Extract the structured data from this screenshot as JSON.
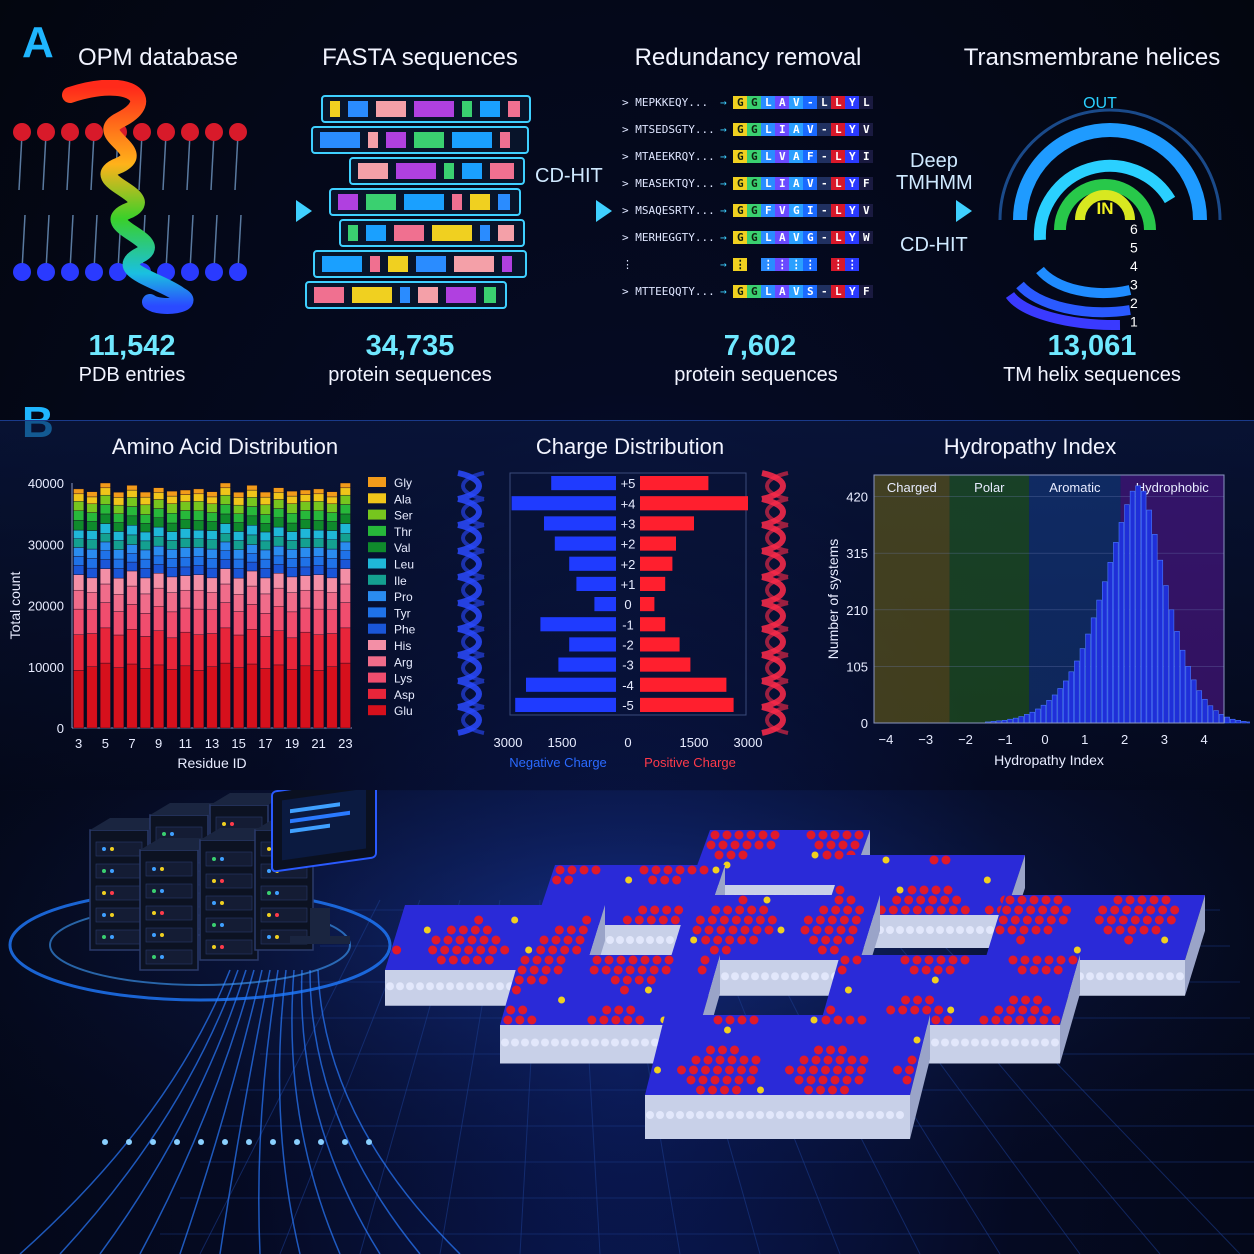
{
  "panels": {
    "a": "A",
    "b": "B"
  },
  "pipeline": {
    "steps": [
      {
        "title": "OPM database",
        "count": "11,542",
        "sub": "PDB entries"
      },
      {
        "title": "FASTA sequences",
        "count": "34,735",
        "sub": "protein sequences"
      },
      {
        "title": "Redundancy removal",
        "count": "7,602",
        "sub": "protein sequences"
      },
      {
        "title": "Transmembrane helices",
        "count": "13,061",
        "sub": "TM helix sequences"
      }
    ],
    "arrow_labels": {
      "cdhit1": "CD-HIT",
      "deep": "Deep",
      "tmhmm": "TMHMM",
      "cdhit2": "CD-HIT"
    },
    "alignment": [
      {
        "id": "> MEPKKEQY...",
        "res": [
          "G",
          "G",
          "L",
          "A",
          "V",
          "-",
          "L",
          "L",
          "Y",
          "L"
        ]
      },
      {
        "id": "> MTSEDSGTY...",
        "res": [
          "G",
          "G",
          "L",
          "I",
          "A",
          "V",
          "-",
          "L",
          "Y",
          "V"
        ]
      },
      {
        "id": "> MTAEEKRQY...",
        "res": [
          "G",
          "G",
          "L",
          "V",
          "A",
          "F",
          "-",
          "L",
          "Y",
          "I"
        ]
      },
      {
        "id": "> MEASEKTQY...",
        "res": [
          "G",
          "G",
          "L",
          "I",
          "A",
          "V",
          "-",
          "L",
          "Y",
          "F"
        ]
      },
      {
        "id": "> MSAQESRTY...",
        "res": [
          "G",
          "G",
          "F",
          "V",
          "G",
          "I",
          "-",
          "L",
          "Y",
          "V"
        ]
      },
      {
        "id": "> MERHEGGTY...",
        "res": [
          "G",
          "G",
          "L",
          "A",
          "V",
          "G",
          "-",
          "L",
          "Y",
          "W"
        ]
      },
      {
        "id": "⋮",
        "res": [
          "⋮",
          "",
          "⋮",
          "⋮",
          "⋮",
          "⋮",
          "",
          "⋮",
          "⋮",
          ""
        ]
      },
      {
        "id": "> MTTEEQQTY...",
        "res": [
          "G",
          "G",
          "L",
          "A",
          "V",
          "S",
          "-",
          "L",
          "Y",
          "F"
        ]
      }
    ],
    "tm_diagram": {
      "out_label": "OUT",
      "in_label": "IN",
      "levels": [
        "6",
        "5",
        "4",
        "3",
        "2",
        "1"
      ]
    }
  },
  "colors": {
    "accent": "#1fb6ff",
    "count": "#6fe8ff",
    "negative": "#1f3bff",
    "positive": "#ff1f2e"
  },
  "chart_data": [
    {
      "type": "bar",
      "stacked": true,
      "title": "Amino Acid Distribution",
      "xlabel": "Residue ID",
      "ylabel": "Total count",
      "ylim": [
        0,
        40000
      ],
      "yticks": [
        0,
        10000,
        20000,
        30000,
        40000
      ],
      "categories": [
        3,
        4,
        5,
        6,
        7,
        8,
        9,
        10,
        11,
        12,
        13,
        14,
        15,
        16,
        17,
        18,
        19,
        20,
        21,
        22,
        23
      ],
      "xtick_labels": [
        "3",
        "5",
        "7",
        "9",
        "11",
        "13",
        "15",
        "17",
        "19",
        "21",
        "23"
      ],
      "legend_position": "right",
      "series": [
        {
          "name": "Glu",
          "color": "#d6101c",
          "value": 10000
        },
        {
          "name": "Asp",
          "color": "#e8253a",
          "value": 5500
        },
        {
          "name": "Lys",
          "color": "#f04d6e",
          "value": 4000
        },
        {
          "name": "Arg",
          "color": "#f06c8a",
          "value": 3000
        },
        {
          "name": "His",
          "color": "#f38fa6",
          "value": 2500
        },
        {
          "name": "Phe",
          "color": "#1a56d8",
          "value": 1500
        },
        {
          "name": "Tyr",
          "color": "#1f72e8",
          "value": 1500
        },
        {
          "name": "Pro",
          "color": "#2a8cf0",
          "value": 1500
        },
        {
          "name": "Ile",
          "color": "#14a090",
          "value": 1500
        },
        {
          "name": "Leu",
          "color": "#1fb7d8",
          "value": 1500
        },
        {
          "name": "Val",
          "color": "#0f8a2c",
          "value": 1500
        },
        {
          "name": "Thr",
          "color": "#27b83a",
          "value": 1500
        },
        {
          "name": "Ser",
          "color": "#76c61e",
          "value": 1500
        },
        {
          "name": "Ala",
          "color": "#f0c51a",
          "value": 1200
        },
        {
          "name": "Gly",
          "color": "#f29b1a",
          "value": 800
        }
      ]
    },
    {
      "type": "bar",
      "orientation": "horizontal",
      "title": "Charge Distribution",
      "xlim": [
        -3000,
        3000
      ],
      "xtick_labels": [
        "3000",
        "1500",
        "0",
        "1500",
        "3000"
      ],
      "charge_labels": [
        "+5",
        "+4",
        "+3",
        "+2",
        "+2",
        "+1",
        "0",
        "-1",
        "-2",
        "-3",
        "-4",
        "-5"
      ],
      "series": [
        {
          "name": "Negative Charge",
          "color": "#1f3bff",
          "values": [
            1800,
            2900,
            2000,
            1700,
            1300,
            1100,
            600,
            2100,
            1300,
            1600,
            2500,
            2800
          ]
        },
        {
          "name": "Positive Charge",
          "color": "#ff1f2e",
          "values": [
            1900,
            3000,
            1500,
            1000,
            900,
            700,
            400,
            700,
            1100,
            1400,
            2400,
            2600
          ]
        }
      ]
    },
    {
      "type": "bar",
      "subtype": "histogram",
      "title": "Hydropathy Index",
      "xlabel": "Hydropathy Index",
      "ylabel": "Number of systems",
      "xlim": [
        -4,
        4.5
      ],
      "ylim": [
        0,
        460
      ],
      "xticks": [
        -4,
        -3,
        -2,
        -1,
        0,
        1,
        2,
        3,
        4
      ],
      "yticks": [
        0,
        105,
        210,
        315,
        420
      ],
      "regions": [
        {
          "label": "Charged",
          "from": -4.5,
          "to": -2.4,
          "color": "#8a7a10"
        },
        {
          "label": "Polar",
          "from": -2.4,
          "to": -0.4,
          "color": "#2f7a1a"
        },
        {
          "label": "Aromatic",
          "from": -0.4,
          "to": 1.9,
          "color": "#1a4aa0"
        },
        {
          "label": "Hydrophobic",
          "from": 1.9,
          "to": 4.5,
          "color": "#6a1ab0"
        }
      ],
      "bin_width": 0.14,
      "bin_start": -1.5,
      "counts": [
        2,
        3,
        4,
        5,
        7,
        9,
        12,
        16,
        20,
        26,
        33,
        42,
        52,
        64,
        78,
        95,
        115,
        138,
        165,
        195,
        228,
        262,
        298,
        335,
        372,
        405,
        430,
        440,
        430,
        395,
        350,
        302,
        255,
        210,
        170,
        135,
        105,
        80,
        60,
        44,
        32,
        23,
        16,
        11,
        7,
        5,
        3,
        2
      ]
    }
  ]
}
